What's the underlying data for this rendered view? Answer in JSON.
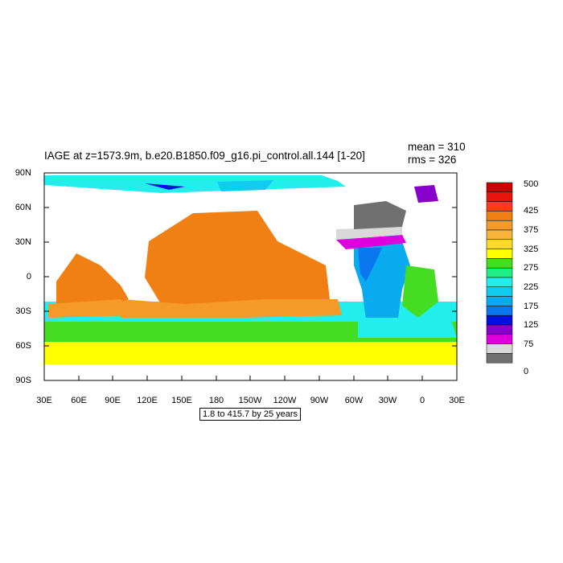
{
  "title": "IAGE at z=1573.9m, b.e20.B1850.f09_g16.pi_control.all.144 [1-20]",
  "stats": {
    "mean": "mean = 310",
    "rms": "rms = 326"
  },
  "y_ticks": [
    "90N",
    "60N",
    "30N",
    "0",
    "30S",
    "60S",
    "90S"
  ],
  "x_ticks": [
    "30E",
    "60E",
    "90E",
    "120E",
    "150E",
    "180",
    "150W",
    "120W",
    "90W",
    "60W",
    "30W",
    "0",
    "30E"
  ],
  "footnote": "1.8 to 415.7 by 25 years",
  "colorbar": {
    "colors": [
      "#cc0000",
      "#e8150e",
      "#ff3a1a",
      "#f08013",
      "#f59a28",
      "#f7b33a",
      "#fdd832",
      "#ffff00",
      "#44dd22",
      "#22ee88",
      "#22eeee",
      "#11ccee",
      "#0aaaee",
      "#0a77ee",
      "#0011dd",
      "#8800cc",
      "#dd00dd",
      "#d9d9d9",
      "#707070"
    ],
    "labels": [
      {
        "text": "500",
        "level": 500
      },
      {
        "text": "425",
        "level": 425
      },
      {
        "text": "375",
        "level": 375
      },
      {
        "text": "325",
        "level": 325
      },
      {
        "text": "275",
        "level": 275
      },
      {
        "text": "225",
        "level": 225
      },
      {
        "text": "175",
        "level": 175
      },
      {
        "text": "125",
        "level": 125
      },
      {
        "text": "75",
        "level": 75
      },
      {
        "text": "0",
        "level": 0
      }
    ]
  },
  "map_colors": {
    "land": "#ffffff",
    "orange": "#f08013",
    "light_orange": "#f59a28",
    "yellow_orange": "#fdd832",
    "yellow": "#ffff00",
    "green": "#44dd22",
    "teal_green": "#22ee88",
    "cyan": "#22eeee",
    "light_blue": "#11ccee",
    "sky_blue": "#0aaaee",
    "blue": "#0a77ee",
    "dark_blue": "#0011dd",
    "purple": "#8800cc",
    "magenta": "#dd00dd",
    "light_gray": "#d9d9d9",
    "dark_gray": "#707070"
  }
}
